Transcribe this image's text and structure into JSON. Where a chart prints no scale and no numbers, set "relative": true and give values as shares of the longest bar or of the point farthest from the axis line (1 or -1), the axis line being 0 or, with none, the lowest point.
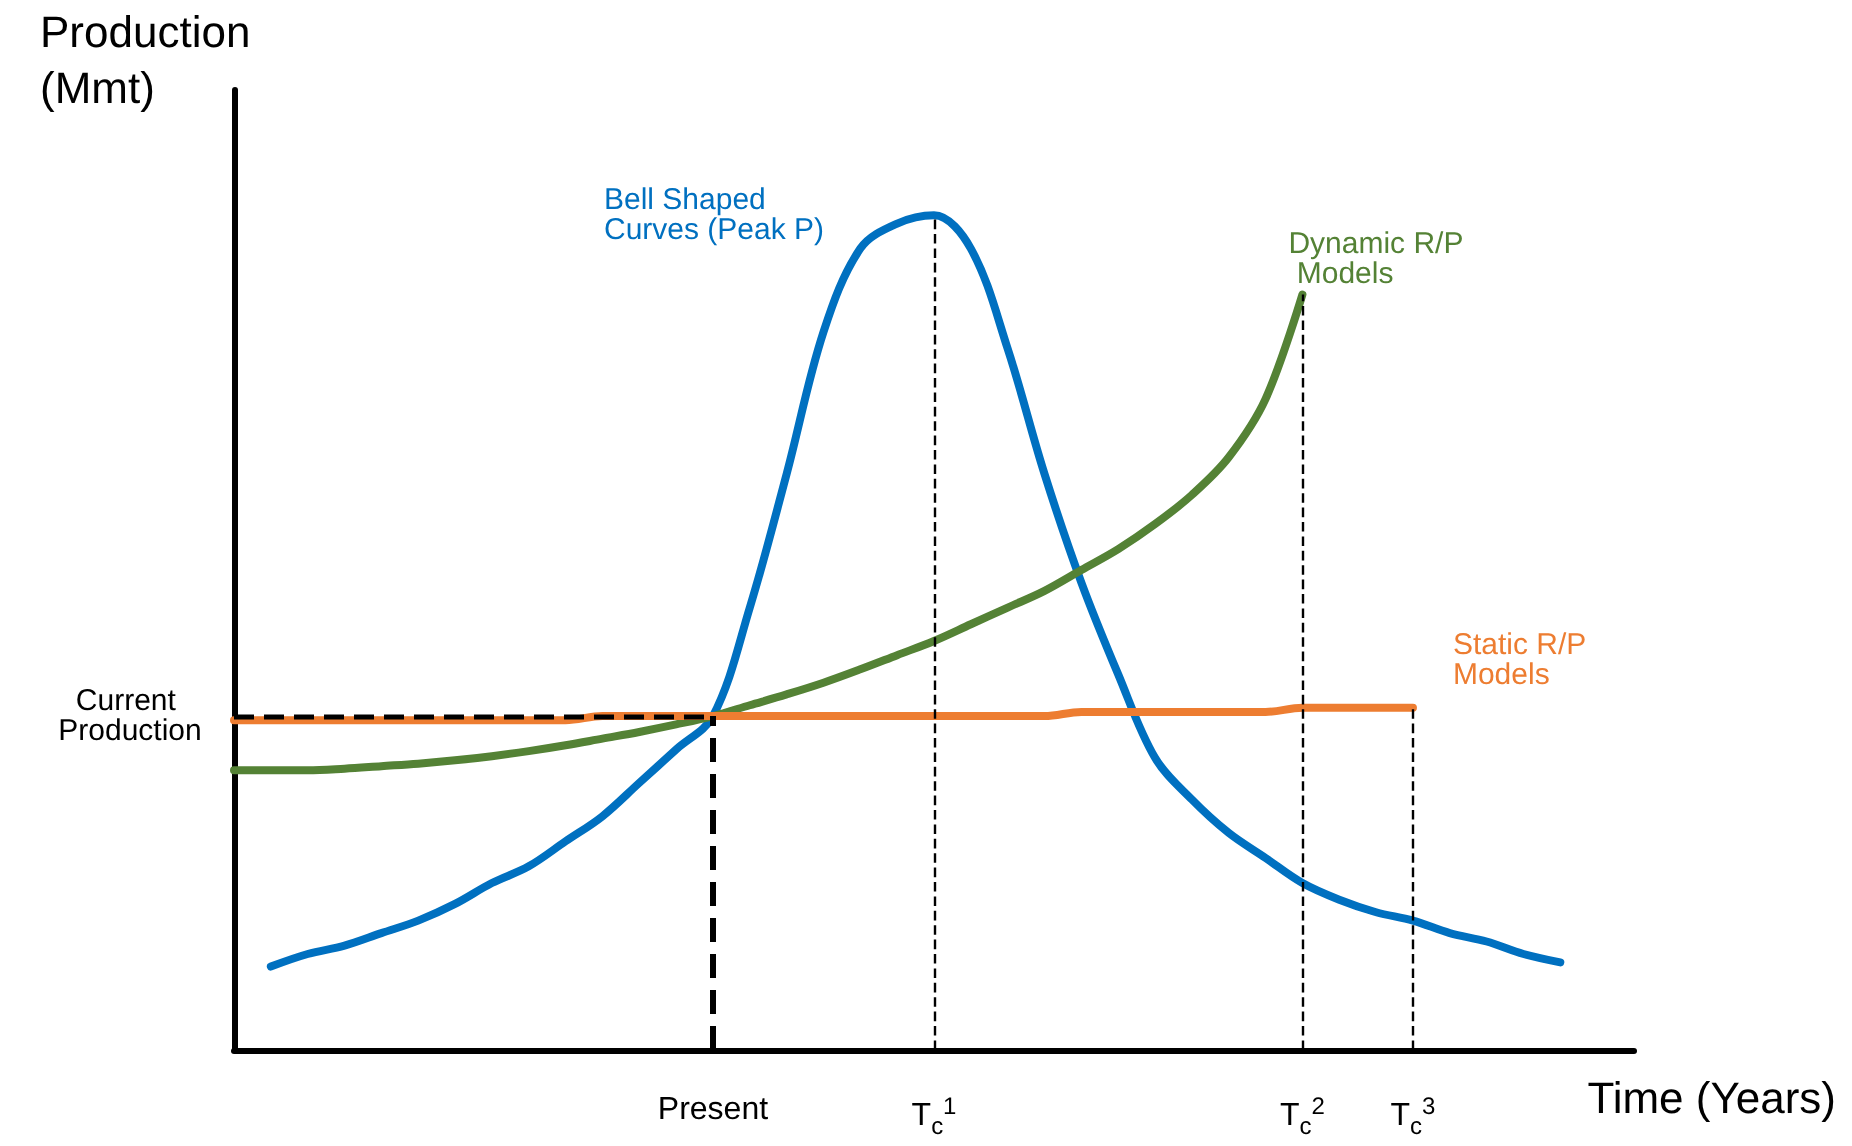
{
  "chart_data": {
    "type": "line",
    "relative": true,
    "xlabel": "Time (Years)",
    "ylabel": "Production (Mmt)",
    "marker": "none",
    "tick_labels": "x",
    "categories": [
      null,
      null,
      null,
      null,
      null,
      null,
      null,
      null,
      null,
      null,
      null,
      null,
      null,
      "Present",
      null,
      null,
      null,
      null,
      null,
      "T$_{c}$$^{1}$",
      null,
      null,
      null,
      null,
      null,
      null,
      null,
      null,
      null,
      "T$_{c}$$^{2}$",
      null,
      null,
      "T$_{c}$$^{3}$",
      null,
      null,
      null,
      null,
      null,
      null
    ],
    "series": [
      {
        "name": "Bell Shaped Curves (Peak P)",
        "color": "#0070c0",
        "values": [
          null,
          0.1,
          0.115,
          0.125,
          0.14,
          0.155,
          0.175,
          0.2,
          0.22,
          0.25,
          0.28,
          0.32,
          0.36,
          0.4,
          0.53,
          0.69,
          0.86,
          0.96,
          0.99,
          1,
          0.96,
          0.84,
          0.69,
          0.56,
          0.45,
          0.35,
          0.3,
          0.26,
          0.23,
          0.2,
          0.18,
          0.165,
          0.155,
          0.14,
          0.13,
          0.115,
          0.105,
          null,
          null
        ]
      },
      {
        "name": "Dynamic R/P Models",
        "color": "#548235",
        "values": [
          0.335,
          0.335,
          0.335,
          0.337,
          0.34,
          0.343,
          0.347,
          0.352,
          0.358,
          0.365,
          0.373,
          0.381,
          0.39,
          0.4,
          0.413,
          0.426,
          0.44,
          0.456,
          0.473,
          0.49,
          0.51,
          0.53,
          0.55,
          0.575,
          0.6,
          0.63,
          0.665,
          0.71,
          0.78,
          0.905,
          null,
          null,
          null,
          null,
          null,
          null,
          null,
          null,
          null
        ]
      },
      {
        "name": "Static R/P Models",
        "color": "#ed7d31",
        "values": [
          0.395,
          0.395,
          0.395,
          0.395,
          0.395,
          0.395,
          0.395,
          0.395,
          0.395,
          0.395,
          0.4,
          0.4,
          0.4,
          0.4,
          0.4,
          0.4,
          0.4,
          0.4,
          0.4,
          0.4,
          0.4,
          0.4,
          0.4,
          0.405,
          0.405,
          0.405,
          0.405,
          0.405,
          0.405,
          0.41,
          0.41,
          0.41,
          0.41,
          null,
          null,
          null,
          null,
          null,
          null
        ]
      }
    ],
    "ref_lines": [
      {
        "axis": "y",
        "value": 0.4,
        "label": "Current Production",
        "color": "#000000",
        "line_style": "dashed"
      },
      {
        "axis": "x",
        "value": "Present",
        "color": "#000000",
        "line_style": "dashed"
      },
      {
        "axis": "x",
        "value": "T$_{c}$$^{1}$",
        "color": "#000000",
        "line_style": "dashed"
      },
      {
        "axis": "x",
        "value": "T$_{c}$$^{2}$",
        "color": "#000000",
        "line_style": "dashed"
      },
      {
        "axis": "x",
        "value": "T$_{c}$$^{3}$",
        "color": "#000000",
        "line_style": "dashed"
      }
    ]
  }
}
